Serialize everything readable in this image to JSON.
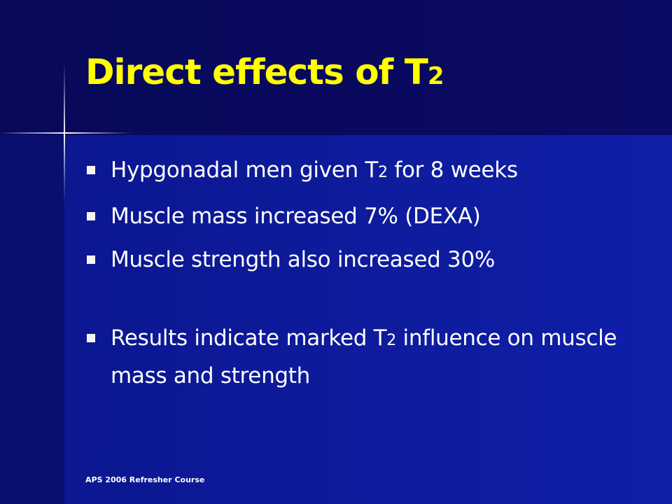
{
  "title": {
    "text": "Direct effects of T",
    "sub": "2"
  },
  "bullets": [
    {
      "before": "Hypgonadal men given T",
      "sub": "2",
      "after": " for 8 weeks"
    },
    {
      "before": "Muscle mass increased 7%  (DEXA)"
    },
    {
      "before": "Muscle strength also increased 30%"
    },
    {
      "before": "Results indicate marked T",
      "sub": "2",
      "after": " influence on muscle mass and strength"
    }
  ],
  "footer": "APS 2006 Refresher Course"
}
